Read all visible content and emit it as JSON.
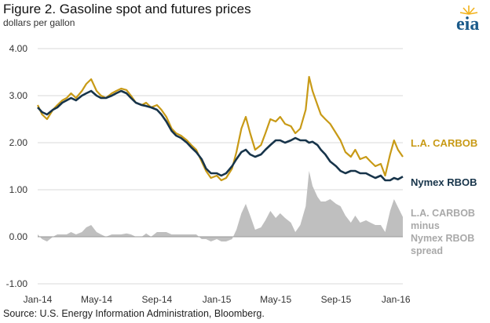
{
  "header": {
    "title": "Figure 2.  Gasoline spot and futures prices",
    "subtitle": "dollars per gallon",
    "logo_text": "eia"
  },
  "footer": {
    "source": "Source:  U.S. Energy Information Administration, Bloomberg."
  },
  "colors": {
    "carbob": "#c89a16",
    "nymex": "#17344a",
    "spread": "#bfbfbf",
    "logo": "#1a5a8a",
    "logo_sun": "#f2b21b"
  },
  "chart_data": {
    "type": "line",
    "ylabel": "dollars per gallon",
    "ylim": [
      -1.0,
      4.0
    ],
    "y_ticks": [
      "4.00",
      "3.00",
      "2.00",
      "1.00",
      "0.00",
      "-1.00"
    ],
    "y_tick_values": [
      4.0,
      3.0,
      2.0,
      1.0,
      0.0,
      -1.0
    ],
    "x_range": [
      "2014-01-01",
      "2016-01-15"
    ],
    "x_ticks": [
      {
        "label": "Jan-14",
        "date": "2014-01-01"
      },
      {
        "label": "May-14",
        "date": "2014-05-01"
      },
      {
        "label": "Sep-14",
        "date": "2014-09-01"
      },
      {
        "label": "Jan-15",
        "date": "2015-01-01"
      },
      {
        "label": "May-15",
        "date": "2015-05-01"
      },
      {
        "label": "Sep-15",
        "date": "2015-09-01"
      },
      {
        "label": "Jan-16",
        "date": "2016-01-01"
      }
    ],
    "grid": "horizontal",
    "series": [
      {
        "name": "L.A. CARBOB",
        "kind": "line",
        "color": "#c89a16",
        "points": [
          [
            "2014-01-01",
            2.8
          ],
          [
            "2014-01-10",
            2.6
          ],
          [
            "2014-01-20",
            2.5
          ],
          [
            "2014-02-01",
            2.7
          ],
          [
            "2014-02-10",
            2.8
          ],
          [
            "2014-02-20",
            2.9
          ],
          [
            "2014-03-01",
            2.95
          ],
          [
            "2014-03-10",
            3.05
          ],
          [
            "2014-03-20",
            2.95
          ],
          [
            "2014-04-01",
            3.1
          ],
          [
            "2014-04-10",
            3.25
          ],
          [
            "2014-04-20",
            3.35
          ],
          [
            "2014-05-01",
            3.1
          ],
          [
            "2014-05-10",
            3.0
          ],
          [
            "2014-05-20",
            2.95
          ],
          [
            "2014-06-01",
            3.05
          ],
          [
            "2014-06-10",
            3.1
          ],
          [
            "2014-06-20",
            3.15
          ],
          [
            "2014-07-01",
            3.12
          ],
          [
            "2014-07-10",
            3.0
          ],
          [
            "2014-07-20",
            2.85
          ],
          [
            "2014-08-01",
            2.8
          ],
          [
            "2014-08-10",
            2.85
          ],
          [
            "2014-08-20",
            2.75
          ],
          [
            "2014-09-01",
            2.8
          ],
          [
            "2014-09-10",
            2.7
          ],
          [
            "2014-09-20",
            2.55
          ],
          [
            "2014-10-01",
            2.3
          ],
          [
            "2014-10-10",
            2.2
          ],
          [
            "2014-10-20",
            2.15
          ],
          [
            "2014-11-01",
            2.05
          ],
          [
            "2014-11-10",
            1.95
          ],
          [
            "2014-11-20",
            1.85
          ],
          [
            "2014-12-01",
            1.6
          ],
          [
            "2014-12-10",
            1.4
          ],
          [
            "2014-12-20",
            1.25
          ],
          [
            "2015-01-01",
            1.3
          ],
          [
            "2015-01-10",
            1.2
          ],
          [
            "2015-01-20",
            1.25
          ],
          [
            "2015-02-01",
            1.45
          ],
          [
            "2015-02-10",
            1.8
          ],
          [
            "2015-02-20",
            2.3
          ],
          [
            "2015-03-01",
            2.55
          ],
          [
            "2015-03-10",
            2.2
          ],
          [
            "2015-03-20",
            1.85
          ],
          [
            "2015-04-01",
            1.95
          ],
          [
            "2015-04-10",
            2.2
          ],
          [
            "2015-04-20",
            2.5
          ],
          [
            "2015-05-01",
            2.45
          ],
          [
            "2015-05-10",
            2.55
          ],
          [
            "2015-05-20",
            2.4
          ],
          [
            "2015-06-01",
            2.35
          ],
          [
            "2015-06-10",
            2.2
          ],
          [
            "2015-06-20",
            2.3
          ],
          [
            "2015-07-01",
            2.7
          ],
          [
            "2015-07-08",
            3.4
          ],
          [
            "2015-07-15",
            3.1
          ],
          [
            "2015-07-25",
            2.8
          ],
          [
            "2015-08-01",
            2.6
          ],
          [
            "2015-08-10",
            2.5
          ],
          [
            "2015-08-20",
            2.4
          ],
          [
            "2015-09-01",
            2.2
          ],
          [
            "2015-09-10",
            2.05
          ],
          [
            "2015-09-20",
            1.8
          ],
          [
            "2015-10-01",
            1.7
          ],
          [
            "2015-10-10",
            1.85
          ],
          [
            "2015-10-20",
            1.65
          ],
          [
            "2015-11-01",
            1.7
          ],
          [
            "2015-11-10",
            1.6
          ],
          [
            "2015-11-20",
            1.5
          ],
          [
            "2015-12-01",
            1.55
          ],
          [
            "2015-12-10",
            1.3
          ],
          [
            "2015-12-20",
            1.75
          ],
          [
            "2015-12-28",
            2.05
          ],
          [
            "2016-01-05",
            1.85
          ],
          [
            "2016-01-15",
            1.7
          ]
        ]
      },
      {
        "name": "Nymex RBOB",
        "kind": "line",
        "color": "#17344a",
        "points": [
          [
            "2014-01-01",
            2.75
          ],
          [
            "2014-01-10",
            2.65
          ],
          [
            "2014-01-20",
            2.6
          ],
          [
            "2014-02-01",
            2.7
          ],
          [
            "2014-02-10",
            2.75
          ],
          [
            "2014-02-20",
            2.85
          ],
          [
            "2014-03-01",
            2.9
          ],
          [
            "2014-03-10",
            2.95
          ],
          [
            "2014-03-20",
            2.9
          ],
          [
            "2014-04-01",
            3.0
          ],
          [
            "2014-04-10",
            3.05
          ],
          [
            "2014-04-20",
            3.1
          ],
          [
            "2014-05-01",
            3.0
          ],
          [
            "2014-05-10",
            2.95
          ],
          [
            "2014-05-20",
            2.95
          ],
          [
            "2014-06-01",
            3.0
          ],
          [
            "2014-06-10",
            3.05
          ],
          [
            "2014-06-20",
            3.1
          ],
          [
            "2014-07-01",
            3.05
          ],
          [
            "2014-07-10",
            2.95
          ],
          [
            "2014-07-20",
            2.85
          ],
          [
            "2014-08-01",
            2.8
          ],
          [
            "2014-08-10",
            2.78
          ],
          [
            "2014-08-20",
            2.75
          ],
          [
            "2014-09-01",
            2.7
          ],
          [
            "2014-09-10",
            2.6
          ],
          [
            "2014-09-20",
            2.45
          ],
          [
            "2014-10-01",
            2.25
          ],
          [
            "2014-10-10",
            2.15
          ],
          [
            "2014-10-20",
            2.1
          ],
          [
            "2014-11-01",
            2.0
          ],
          [
            "2014-11-10",
            1.9
          ],
          [
            "2014-11-20",
            1.8
          ],
          [
            "2014-12-01",
            1.65
          ],
          [
            "2014-12-10",
            1.45
          ],
          [
            "2014-12-20",
            1.35
          ],
          [
            "2015-01-01",
            1.35
          ],
          [
            "2015-01-10",
            1.3
          ],
          [
            "2015-01-20",
            1.35
          ],
          [
            "2015-02-01",
            1.5
          ],
          [
            "2015-02-10",
            1.65
          ],
          [
            "2015-02-20",
            1.8
          ],
          [
            "2015-03-01",
            1.85
          ],
          [
            "2015-03-10",
            1.75
          ],
          [
            "2015-03-20",
            1.7
          ],
          [
            "2015-04-01",
            1.75
          ],
          [
            "2015-04-10",
            1.85
          ],
          [
            "2015-04-20",
            1.95
          ],
          [
            "2015-05-01",
            2.05
          ],
          [
            "2015-05-10",
            2.05
          ],
          [
            "2015-05-20",
            2.0
          ],
          [
            "2015-06-01",
            2.05
          ],
          [
            "2015-06-10",
            2.1
          ],
          [
            "2015-06-20",
            2.05
          ],
          [
            "2015-07-01",
            2.05
          ],
          [
            "2015-07-08",
            2.0
          ],
          [
            "2015-07-15",
            2.02
          ],
          [
            "2015-07-25",
            1.95
          ],
          [
            "2015-08-01",
            1.85
          ],
          [
            "2015-08-10",
            1.75
          ],
          [
            "2015-08-20",
            1.6
          ],
          [
            "2015-09-01",
            1.5
          ],
          [
            "2015-09-10",
            1.4
          ],
          [
            "2015-09-20",
            1.35
          ],
          [
            "2015-10-01",
            1.4
          ],
          [
            "2015-10-10",
            1.4
          ],
          [
            "2015-10-20",
            1.35
          ],
          [
            "2015-11-01",
            1.35
          ],
          [
            "2015-11-10",
            1.3
          ],
          [
            "2015-11-20",
            1.25
          ],
          [
            "2015-12-01",
            1.3
          ],
          [
            "2015-12-10",
            1.2
          ],
          [
            "2015-12-20",
            1.2
          ],
          [
            "2015-12-28",
            1.25
          ],
          [
            "2016-01-05",
            1.22
          ],
          [
            "2016-01-15",
            1.28
          ]
        ]
      },
      {
        "name": "L.A. CARBOB minus Nymex RBOB spread",
        "kind": "area",
        "color": "#bfbfbf",
        "points": [
          [
            "2014-01-01",
            0.05
          ],
          [
            "2014-01-10",
            -0.05
          ],
          [
            "2014-01-20",
            -0.1
          ],
          [
            "2014-02-01",
            0.0
          ],
          [
            "2014-02-10",
            0.05
          ],
          [
            "2014-02-20",
            0.05
          ],
          [
            "2014-03-01",
            0.05
          ],
          [
            "2014-03-10",
            0.1
          ],
          [
            "2014-03-20",
            0.05
          ],
          [
            "2014-04-01",
            0.1
          ],
          [
            "2014-04-10",
            0.2
          ],
          [
            "2014-04-20",
            0.25
          ],
          [
            "2014-05-01",
            0.1
          ],
          [
            "2014-05-10",
            0.05
          ],
          [
            "2014-05-20",
            0.0
          ],
          [
            "2014-06-01",
            0.05
          ],
          [
            "2014-06-10",
            0.05
          ],
          [
            "2014-06-20",
            0.05
          ],
          [
            "2014-07-01",
            0.07
          ],
          [
            "2014-07-10",
            0.05
          ],
          [
            "2014-07-20",
            0.0
          ],
          [
            "2014-08-01",
            0.0
          ],
          [
            "2014-08-10",
            0.07
          ],
          [
            "2014-08-20",
            0.0
          ],
          [
            "2014-09-01",
            0.1
          ],
          [
            "2014-09-10",
            0.1
          ],
          [
            "2014-09-20",
            0.1
          ],
          [
            "2014-10-01",
            0.05
          ],
          [
            "2014-10-10",
            0.05
          ],
          [
            "2014-10-20",
            0.05
          ],
          [
            "2014-11-01",
            0.05
          ],
          [
            "2014-11-10",
            0.05
          ],
          [
            "2014-11-20",
            0.05
          ],
          [
            "2014-12-01",
            -0.05
          ],
          [
            "2014-12-10",
            -0.05
          ],
          [
            "2014-12-20",
            -0.1
          ],
          [
            "2015-01-01",
            -0.05
          ],
          [
            "2015-01-10",
            -0.1
          ],
          [
            "2015-01-20",
            -0.1
          ],
          [
            "2015-02-01",
            -0.05
          ],
          [
            "2015-02-10",
            0.15
          ],
          [
            "2015-02-20",
            0.5
          ],
          [
            "2015-03-01",
            0.7
          ],
          [
            "2015-03-10",
            0.45
          ],
          [
            "2015-03-20",
            0.15
          ],
          [
            "2015-04-01",
            0.2
          ],
          [
            "2015-04-10",
            0.35
          ],
          [
            "2015-04-20",
            0.55
          ],
          [
            "2015-05-01",
            0.4
          ],
          [
            "2015-05-10",
            0.5
          ],
          [
            "2015-05-20",
            0.4
          ],
          [
            "2015-06-01",
            0.3
          ],
          [
            "2015-06-10",
            0.1
          ],
          [
            "2015-06-20",
            0.25
          ],
          [
            "2015-07-01",
            0.65
          ],
          [
            "2015-07-08",
            1.4
          ],
          [
            "2015-07-15",
            1.08
          ],
          [
            "2015-07-25",
            0.85
          ],
          [
            "2015-08-01",
            0.75
          ],
          [
            "2015-08-10",
            0.75
          ],
          [
            "2015-08-20",
            0.8
          ],
          [
            "2015-09-01",
            0.7
          ],
          [
            "2015-09-10",
            0.65
          ],
          [
            "2015-09-20",
            0.45
          ],
          [
            "2015-10-01",
            0.3
          ],
          [
            "2015-10-10",
            0.45
          ],
          [
            "2015-10-20",
            0.3
          ],
          [
            "2015-11-01",
            0.35
          ],
          [
            "2015-11-10",
            0.3
          ],
          [
            "2015-11-20",
            0.25
          ],
          [
            "2015-12-01",
            0.25
          ],
          [
            "2015-12-10",
            0.1
          ],
          [
            "2015-12-20",
            0.55
          ],
          [
            "2015-12-28",
            0.8
          ],
          [
            "2016-01-05",
            0.63
          ],
          [
            "2016-01-15",
            0.42
          ]
        ]
      }
    ],
    "labels": {
      "carbob": "L.A. CARBOB",
      "nymex": "Nymex RBOB",
      "spread": [
        "L.A. CARBOB",
        "minus",
        "Nymex RBOB",
        "spread"
      ]
    }
  }
}
